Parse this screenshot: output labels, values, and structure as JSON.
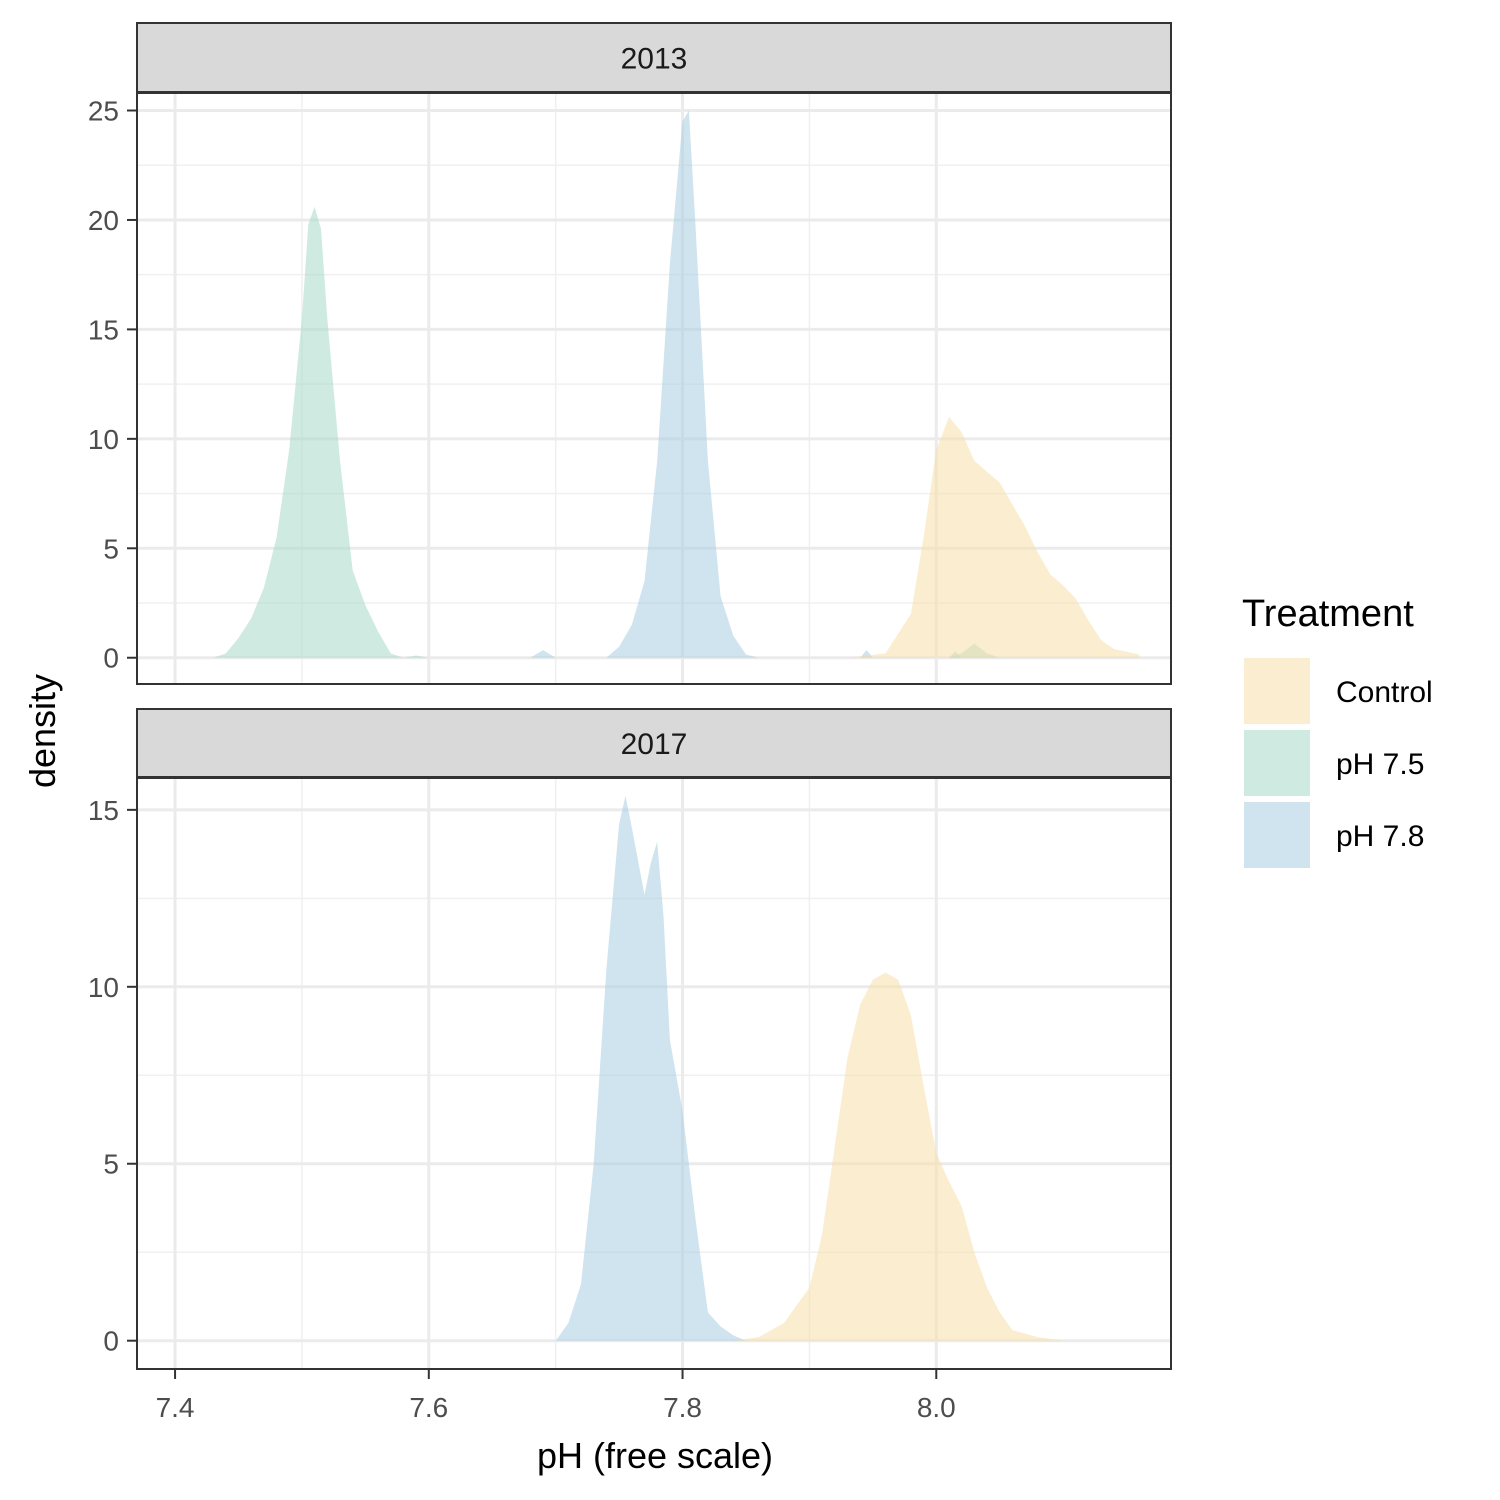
{
  "chart_data": {
    "type": "area",
    "subtype": "density",
    "xlabel": "pH (free scale)",
    "ylabel": "density",
    "xlim": [
      7.37,
      8.185
    ],
    "x_ticks": [
      "7.4",
      "7.6",
      "7.8",
      "8.0"
    ],
    "x_tick_values": [
      7.4,
      7.6,
      7.8,
      8.0
    ],
    "grid": true,
    "legend": {
      "title": "Treatment",
      "placement": "right",
      "entries": [
        {
          "label": "Control",
          "color": "#F8DEA8"
        },
        {
          "label": "pH 7.5",
          "color": "#A8DAC9"
        },
        {
          "label": "pH 7.8",
          "color": "#A7CDE2"
        }
      ]
    },
    "fill_opacity": 0.55,
    "panels": [
      {
        "strip": "2013",
        "ylim": [
          -1.2,
          25.8
        ],
        "y_ticks": [
          "0",
          "5",
          "10",
          "15",
          "20",
          "25"
        ],
        "y_tick_values": [
          0,
          5,
          10,
          15,
          20,
          25
        ],
        "series": [
          {
            "name": "pH 7.5",
            "color": "#A8DAC9",
            "points": [
              [
                7.43,
                0
              ],
              [
                7.44,
                0.2
              ],
              [
                7.45,
                0.9
              ],
              [
                7.46,
                1.8
              ],
              [
                7.47,
                3.2
              ],
              [
                7.48,
                5.5
              ],
              [
                7.49,
                9.5
              ],
              [
                7.5,
                15.5
              ],
              [
                7.505,
                19.8
              ],
              [
                7.51,
                20.6
              ],
              [
                7.515,
                19.6
              ],
              [
                7.52,
                15.5
              ],
              [
                7.53,
                9
              ],
              [
                7.54,
                4
              ],
              [
                7.55,
                2.4
              ],
              [
                7.56,
                1.2
              ],
              [
                7.57,
                0.2
              ],
              [
                7.58,
                0
              ],
              [
                7.59,
                0.1
              ],
              [
                7.6,
                0
              ]
            ]
          },
          {
            "name": "pH 7.8",
            "color": "#A7CDE2",
            "points": [
              [
                7.68,
                0
              ],
              [
                7.69,
                0.35
              ],
              [
                7.7,
                0
              ],
              [
                7.74,
                0
              ],
              [
                7.75,
                0.5
              ],
              [
                7.76,
                1.5
              ],
              [
                7.77,
                3.5
              ],
              [
                7.78,
                9
              ],
              [
                7.79,
                18
              ],
              [
                7.8,
                24.5
              ],
              [
                7.805,
                25
              ],
              [
                7.81,
                20
              ],
              [
                7.82,
                9
              ],
              [
                7.83,
                2.8
              ],
              [
                7.84,
                1
              ],
              [
                7.85,
                0.15
              ],
              [
                7.86,
                0
              ],
              [
                7.94,
                0
              ],
              [
                7.945,
                0.35
              ],
              [
                7.95,
                0
              ],
              [
                8.01,
                0
              ],
              [
                8.015,
                0.3
              ],
              [
                8.02,
                0
              ]
            ]
          },
          {
            "name": "pH 7.5",
            "color": "#A8DAC9",
            "points": [
              [
                8.01,
                0
              ],
              [
                8.02,
                0.2
              ],
              [
                8.03,
                0.65
              ],
              [
                8.04,
                0.2
              ],
              [
                8.05,
                0
              ]
            ]
          },
          {
            "name": "Control",
            "color": "#F8DEA8",
            "points": [
              [
                7.93,
                0
              ],
              [
                7.96,
                0.2
              ],
              [
                7.98,
                2
              ],
              [
                7.99,
                5.5
              ],
              [
                8.0,
                9.5
              ],
              [
                8.01,
                11
              ],
              [
                8.02,
                10.3
              ],
              [
                8.03,
                9
              ],
              [
                8.04,
                8.5
              ],
              [
                8.05,
                8
              ],
              [
                8.06,
                7
              ],
              [
                8.07,
                6
              ],
              [
                8.08,
                4.8
              ],
              [
                8.09,
                3.8
              ],
              [
                8.1,
                3.3
              ],
              [
                8.11,
                2.7
              ],
              [
                8.12,
                1.7
              ],
              [
                8.13,
                0.8
              ],
              [
                8.14,
                0.4
              ],
              [
                8.16,
                0.15
              ],
              [
                8.16,
                0
              ]
            ]
          }
        ]
      },
      {
        "strip": "2017",
        "ylim": [
          -0.8,
          15.9
        ],
        "y_ticks": [
          "0",
          "5",
          "10",
          "15"
        ],
        "y_tick_values": [
          0,
          5,
          10,
          15
        ],
        "series": [
          {
            "name": "pH 7.8",
            "color": "#A7CDE2",
            "points": [
              [
                7.7,
                0
              ],
              [
                7.71,
                0.5
              ],
              [
                7.72,
                1.6
              ],
              [
                7.73,
                5
              ],
              [
                7.74,
                10.5
              ],
              [
                7.75,
                14.6
              ],
              [
                7.755,
                15.4
              ],
              [
                7.76,
                14.5
              ],
              [
                7.77,
                12.6
              ],
              [
                7.775,
                13.5
              ],
              [
                7.78,
                14.1
              ],
              [
                7.785,
                12
              ],
              [
                7.79,
                8.5
              ],
              [
                7.8,
                6.5
              ],
              [
                7.81,
                3.5
              ],
              [
                7.82,
                0.8
              ],
              [
                7.83,
                0.4
              ],
              [
                7.84,
                0.15
              ],
              [
                7.85,
                0
              ]
            ]
          },
          {
            "name": "Control",
            "color": "#F8DEA8",
            "points": [
              [
                7.84,
                0
              ],
              [
                7.86,
                0.1
              ],
              [
                7.88,
                0.5
              ],
              [
                7.9,
                1.5
              ],
              [
                7.91,
                3
              ],
              [
                7.92,
                5.5
              ],
              [
                7.93,
                8
              ],
              [
                7.94,
                9.5
              ],
              [
                7.95,
                10.2
              ],
              [
                7.96,
                10.4
              ],
              [
                7.97,
                10.2
              ],
              [
                7.98,
                9.2
              ],
              [
                7.99,
                7.2
              ],
              [
                8.0,
                5.3
              ],
              [
                8.01,
                4.5
              ],
              [
                8.02,
                3.8
              ],
              [
                8.03,
                2.5
              ],
              [
                8.04,
                1.5
              ],
              [
                8.05,
                0.8
              ],
              [
                8.06,
                0.3
              ],
              [
                8.08,
                0.1
              ],
              [
                8.1,
                0
              ]
            ]
          }
        ]
      }
    ]
  }
}
